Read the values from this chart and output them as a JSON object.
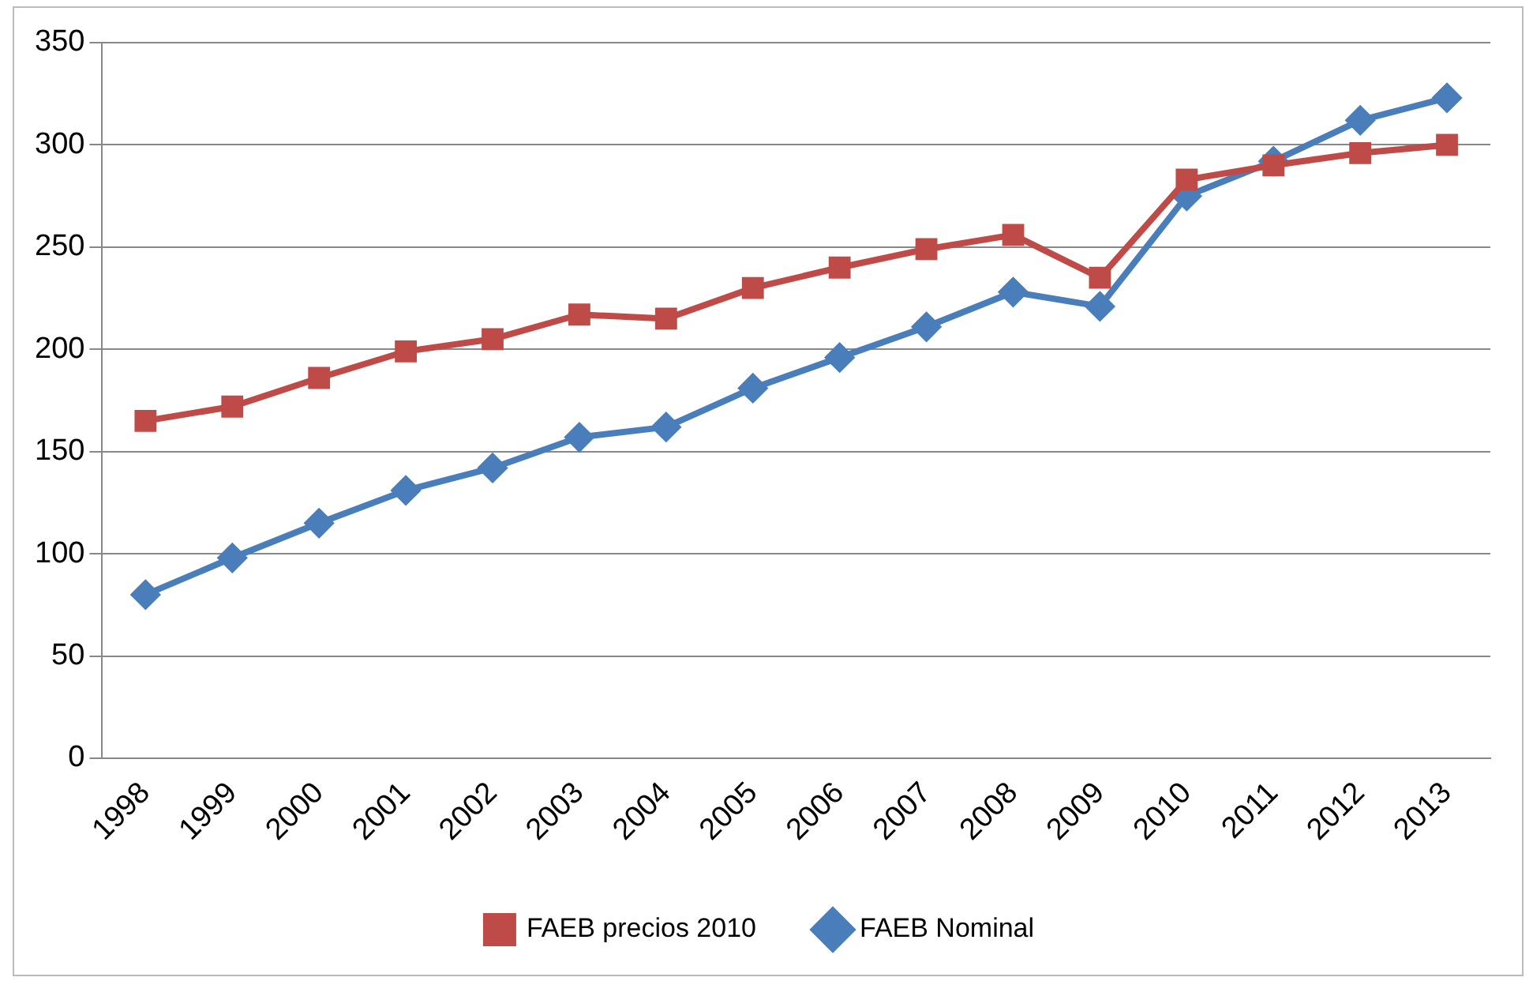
{
  "chart_data": {
    "type": "line",
    "categories": [
      "1998",
      "1999",
      "2000",
      "2001",
      "2002",
      "2003",
      "2004",
      "2005",
      "2006",
      "2007",
      "2008",
      "2009",
      "2010",
      "2011",
      "2012",
      "2013"
    ],
    "series": [
      {
        "name": "FAEB Nominal",
        "color": "#4a7ebb",
        "marker": "diamond",
        "values": [
          80,
          98,
          115,
          131,
          142,
          157,
          162,
          181,
          196,
          211,
          228,
          221,
          275,
          292,
          312,
          323
        ]
      },
      {
        "name": "FAEB precios 2010",
        "color": "#be4b48",
        "marker": "square",
        "values": [
          165,
          172,
          186,
          199,
          205,
          217,
          215,
          230,
          240,
          249,
          256,
          235,
          283,
          290,
          296,
          300
        ]
      }
    ],
    "ylim": [
      0,
      350
    ],
    "yticks": [
      0,
      50,
      100,
      150,
      200,
      250,
      300,
      350
    ],
    "grid": "y",
    "legend": "bottom",
    "line_style": "solid"
  }
}
